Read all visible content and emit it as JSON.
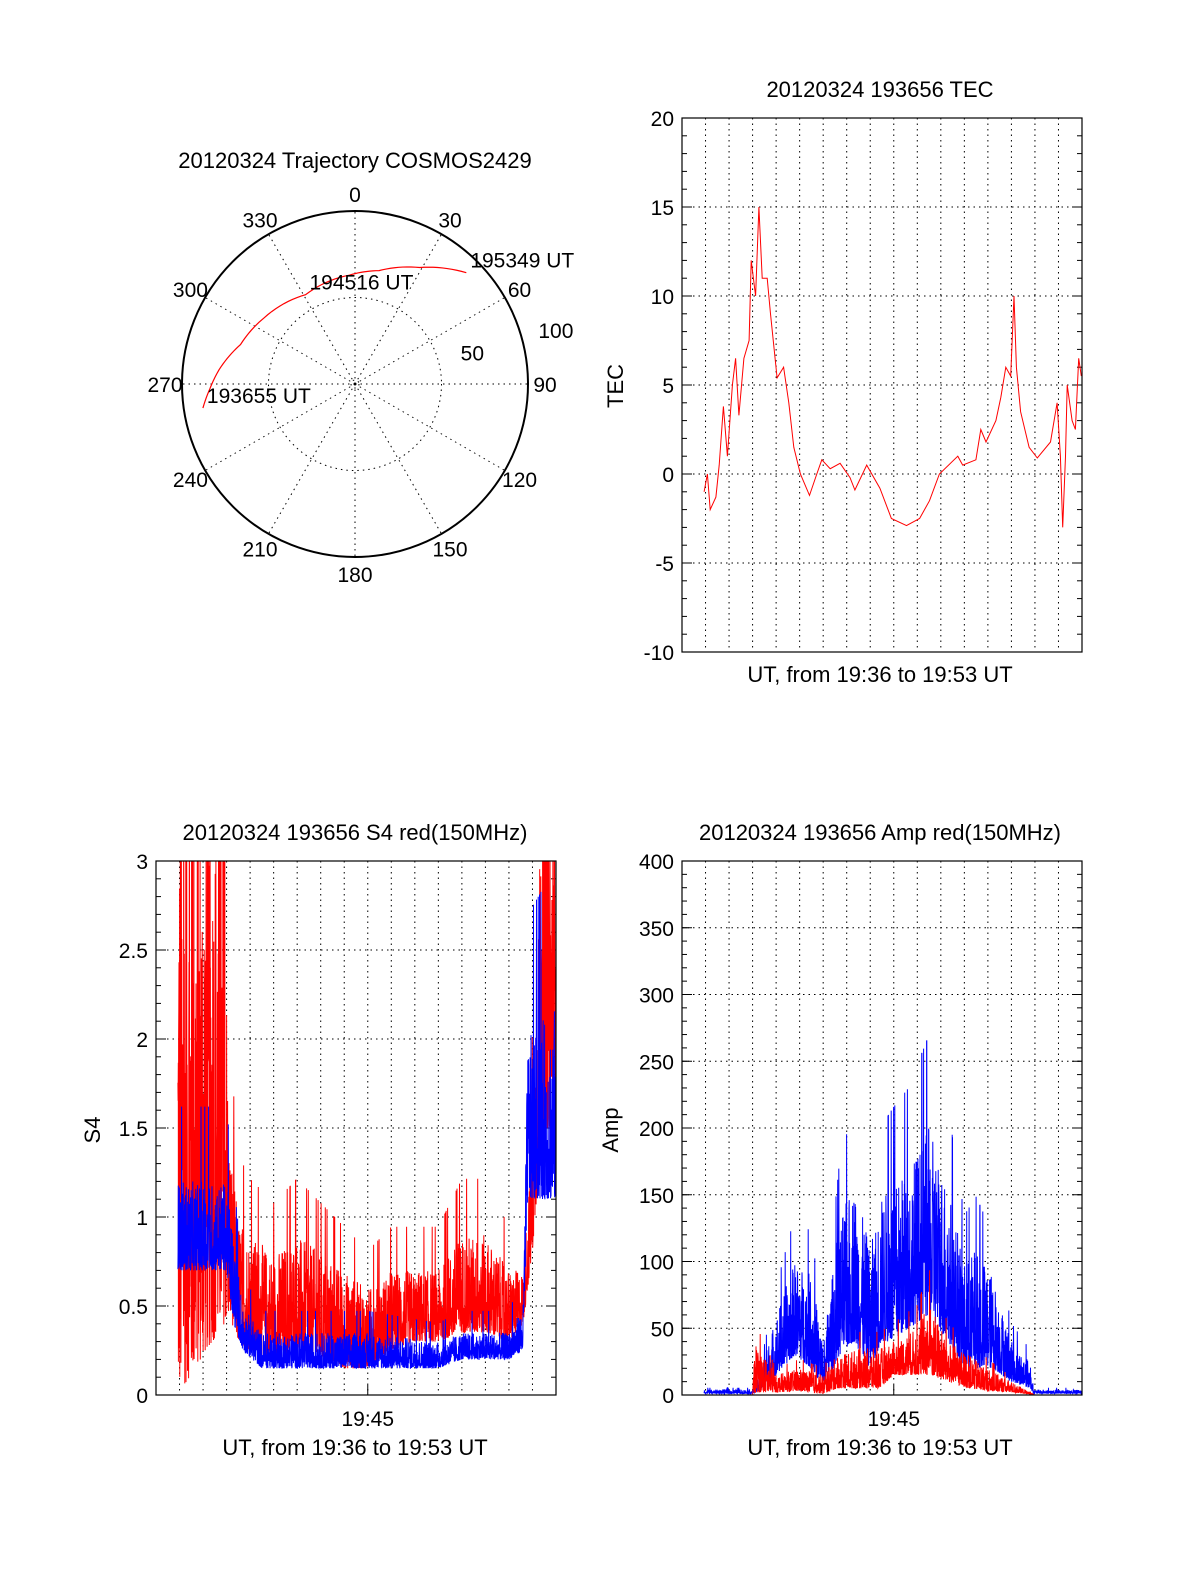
{
  "chart_data": [
    {
      "type": "polar",
      "title": "20120324 Trajectory COSMOS2429",
      "rlim": [
        0,
        100
      ],
      "azimuth_labels": [
        "0",
        "30",
        "60",
        "90",
        "120",
        "150",
        "180",
        "210",
        "240",
        "270",
        "300",
        "330"
      ],
      "radial_labels": [
        "50",
        "100"
      ],
      "grid": true,
      "series": [
        {
          "name": "trajectory",
          "color": "#ff0000",
          "points_az_r": [
            [
              261,
              89
            ],
            [
              268,
              84
            ],
            [
              276,
              79
            ],
            [
              289,
              70
            ],
            [
              306,
              65
            ],
            [
              331,
              59
            ],
            [
              357,
              63
            ],
            [
              12,
              67
            ],
            [
              29,
              77
            ],
            [
              45,
              91
            ]
          ]
        }
      ],
      "annotations": [
        {
          "text": "193655 UT",
          "az": 261,
          "r": 89
        },
        {
          "text": "194516 UT",
          "az": 331,
          "r": 59
        },
        {
          "text": "195349 UT",
          "az": 45,
          "r": 91
        }
      ]
    },
    {
      "type": "line",
      "title": "20120324 193656 TEC",
      "xlabel": "UT, from 19:36 to 19:53 UT",
      "ylabel": "TEC",
      "xlim": [
        0,
        17
      ],
      "ylim": [
        -10,
        20
      ],
      "yticks": [
        -10,
        -5,
        0,
        5,
        10,
        15,
        20
      ],
      "yminor": 1,
      "xticks": [],
      "grid": true,
      "series": [
        {
          "name": "TEC",
          "color": "#ff0000",
          "points": [
            [
              0.94,
              -1
            ],
            [
              1.08,
              0
            ],
            [
              1.2,
              -2
            ],
            [
              1.44,
              -1.3
            ],
            [
              1.58,
              0.5
            ],
            [
              1.76,
              3.8
            ],
            [
              1.93,
              1
            ],
            [
              2.14,
              5
            ],
            [
              2.28,
              6.5
            ],
            [
              2.42,
              3.3
            ],
            [
              2.63,
              6.5
            ],
            [
              2.85,
              7.5
            ],
            [
              2.94,
              12
            ],
            [
              3.13,
              10
            ],
            [
              3.27,
              15
            ],
            [
              3.41,
              11
            ],
            [
              3.62,
              11
            ],
            [
              3.76,
              9
            ],
            [
              4.04,
              5.4
            ],
            [
              4.32,
              6
            ],
            [
              4.54,
              4
            ],
            [
              4.75,
              1.5
            ],
            [
              5.03,
              0
            ],
            [
              5.42,
              -1.2
            ],
            [
              5.73,
              0
            ],
            [
              5.94,
              0.8
            ],
            [
              6.3,
              0.3
            ],
            [
              6.72,
              0.6
            ],
            [
              7.14,
              -0.2
            ],
            [
              7.35,
              -0.9
            ],
            [
              7.85,
              0.5
            ],
            [
              8.41,
              -0.8
            ],
            [
              8.9,
              -2.5
            ],
            [
              9.54,
              -2.9
            ],
            [
              10.1,
              -2.5
            ],
            [
              10.52,
              -1.5
            ],
            [
              10.94,
              0
            ],
            [
              11.72,
              1
            ],
            [
              11.93,
              0.5
            ],
            [
              12.49,
              0.8
            ],
            [
              12.7,
              2.5
            ],
            [
              12.92,
              1.8
            ],
            [
              13.34,
              3
            ],
            [
              13.55,
              4.3
            ],
            [
              13.76,
              6
            ],
            [
              13.97,
              5.5
            ],
            [
              14.11,
              10
            ],
            [
              14.21,
              6
            ],
            [
              14.39,
              3.5
            ],
            [
              14.75,
              1.5
            ],
            [
              15.1,
              0.9
            ],
            [
              15.66,
              1.8
            ],
            [
              15.94,
              4
            ],
            [
              16.08,
              1
            ],
            [
              16.18,
              -3
            ],
            [
              16.3,
              1
            ],
            [
              16.37,
              5
            ],
            [
              16.58,
              3
            ],
            [
              16.72,
              2.5
            ],
            [
              16.86,
              6.5
            ],
            [
              16.97,
              5.5
            ]
          ]
        }
      ]
    },
    {
      "type": "line",
      "title": "20120324 193656 S4 red(150MHz)",
      "xlabel": "UT, from 19:36 to 19:53 UT",
      "ylabel": "S4",
      "xlim": [
        0,
        17
      ],
      "ylim": [
        0,
        3
      ],
      "yticks": [
        0,
        0.5,
        1,
        1.5,
        2,
        2.5,
        3
      ],
      "yminor": 0.1,
      "xticks": [
        {
          "value": 9,
          "label": "19:45"
        }
      ],
      "grid": true,
      "series": [
        {
          "name": "S4 red",
          "color": "#ff0000",
          "envelope_t_low_high": [
            [
              0.93,
              0,
              3.6
            ],
            [
              2.9,
              0.4,
              3.4
            ],
            [
              3.1,
              0.45,
              1.5
            ],
            [
              3.5,
              0.3,
              1.0
            ],
            [
              4,
              0.25,
              0.9
            ],
            [
              5,
              0.2,
              0.8
            ],
            [
              6,
              0.25,
              0.9
            ],
            [
              7,
              0.2,
              0.8
            ],
            [
              8,
              0.15,
              0.7
            ],
            [
              9,
              0.15,
              0.6
            ],
            [
              10,
              0.25,
              0.7
            ],
            [
              11,
              0.3,
              0.7
            ],
            [
              12,
              0.3,
              0.7
            ],
            [
              13,
              0.35,
              0.9
            ],
            [
              14,
              0.35,
              0.9
            ],
            [
              15,
              0.3,
              0.7
            ],
            [
              15.6,
              0.4,
              0.7
            ],
            [
              16,
              0.8,
              1.5
            ],
            [
              16.4,
              1.5,
              3.5
            ],
            [
              17,
              1.5,
              3.5
            ]
          ]
        },
        {
          "name": "S4 blue",
          "color": "#0000ff",
          "envelope_t_low_high": [
            [
              0.93,
              0.7,
              1.2
            ],
            [
              3,
              0.7,
              1.2
            ],
            [
              3.3,
              0.4,
              0.9
            ],
            [
              3.7,
              0.25,
              0.5
            ],
            [
              4.5,
              0.15,
              0.35
            ],
            [
              6,
              0.15,
              0.35
            ],
            [
              9,
              0.15,
              0.35
            ],
            [
              12,
              0.15,
              0.3
            ],
            [
              13,
              0.2,
              0.35
            ],
            [
              15,
              0.2,
              0.35
            ],
            [
              15.6,
              0.25,
              0.5
            ],
            [
              15.8,
              1.1,
              2.0
            ],
            [
              17,
              1.1,
              2.2
            ]
          ]
        }
      ]
    },
    {
      "type": "line",
      "title": "20120324 193656 Amp red(150MHz)",
      "xlabel": "UT, from 19:36 to 19:53 UT",
      "ylabel": "Amp",
      "xlim": [
        0,
        17
      ],
      "ylim": [
        0,
        400
      ],
      "yticks": [
        0,
        50,
        100,
        150,
        200,
        250,
        300,
        350,
        400
      ],
      "yminor": 10,
      "xticks": [
        {
          "value": 9,
          "label": "19:45"
        }
      ],
      "grid": true,
      "series": [
        {
          "name": "Amp blue",
          "color": "#0000ff",
          "envelope_t_low_high": [
            [
              0.93,
              1,
              4
            ],
            [
              3,
              1,
              4
            ],
            [
              3.3,
              3,
              15
            ],
            [
              4,
              15,
              60
            ],
            [
              4.8,
              30,
              100
            ],
            [
              5.5,
              20,
              90
            ],
            [
              6,
              5,
              40
            ],
            [
              6.7,
              30,
              130
            ],
            [
              7.3,
              40,
              160
            ],
            [
              8,
              20,
              110
            ],
            [
              8.5,
              40,
              150
            ],
            [
              9,
              40,
              160
            ],
            [
              9.6,
              50,
              170
            ],
            [
              10.5,
              60,
              200
            ],
            [
              11.3,
              40,
              160
            ],
            [
              12,
              20,
              100
            ],
            [
              12.5,
              20,
              110
            ],
            [
              13.2,
              20,
              90
            ],
            [
              14,
              10,
              40
            ],
            [
              14.8,
              5,
              25
            ],
            [
              14.95,
              1,
              4
            ],
            [
              17,
              1,
              4
            ]
          ]
        },
        {
          "name": "Amp red",
          "color": "#ff0000",
          "envelope_t_low_high": [
            [
              0.93,
              0,
              0
            ],
            [
              3.0,
              0,
              0
            ],
            [
              3.1,
              2,
              40
            ],
            [
              4,
              2,
              15
            ],
            [
              5,
              3,
              20
            ],
            [
              6,
              1,
              15
            ],
            [
              6.6,
              5,
              30
            ],
            [
              7.5,
              5,
              35
            ],
            [
              8.4,
              5,
              35
            ],
            [
              9,
              15,
              40
            ],
            [
              10,
              15,
              50
            ],
            [
              10.5,
              15,
              70
            ],
            [
              11.3,
              10,
              40
            ],
            [
              12.2,
              5,
              30
            ],
            [
              13,
              3,
              20
            ],
            [
              14,
              2,
              10
            ],
            [
              15,
              0,
              0
            ],
            [
              17,
              0,
              0
            ]
          ]
        }
      ]
    }
  ]
}
